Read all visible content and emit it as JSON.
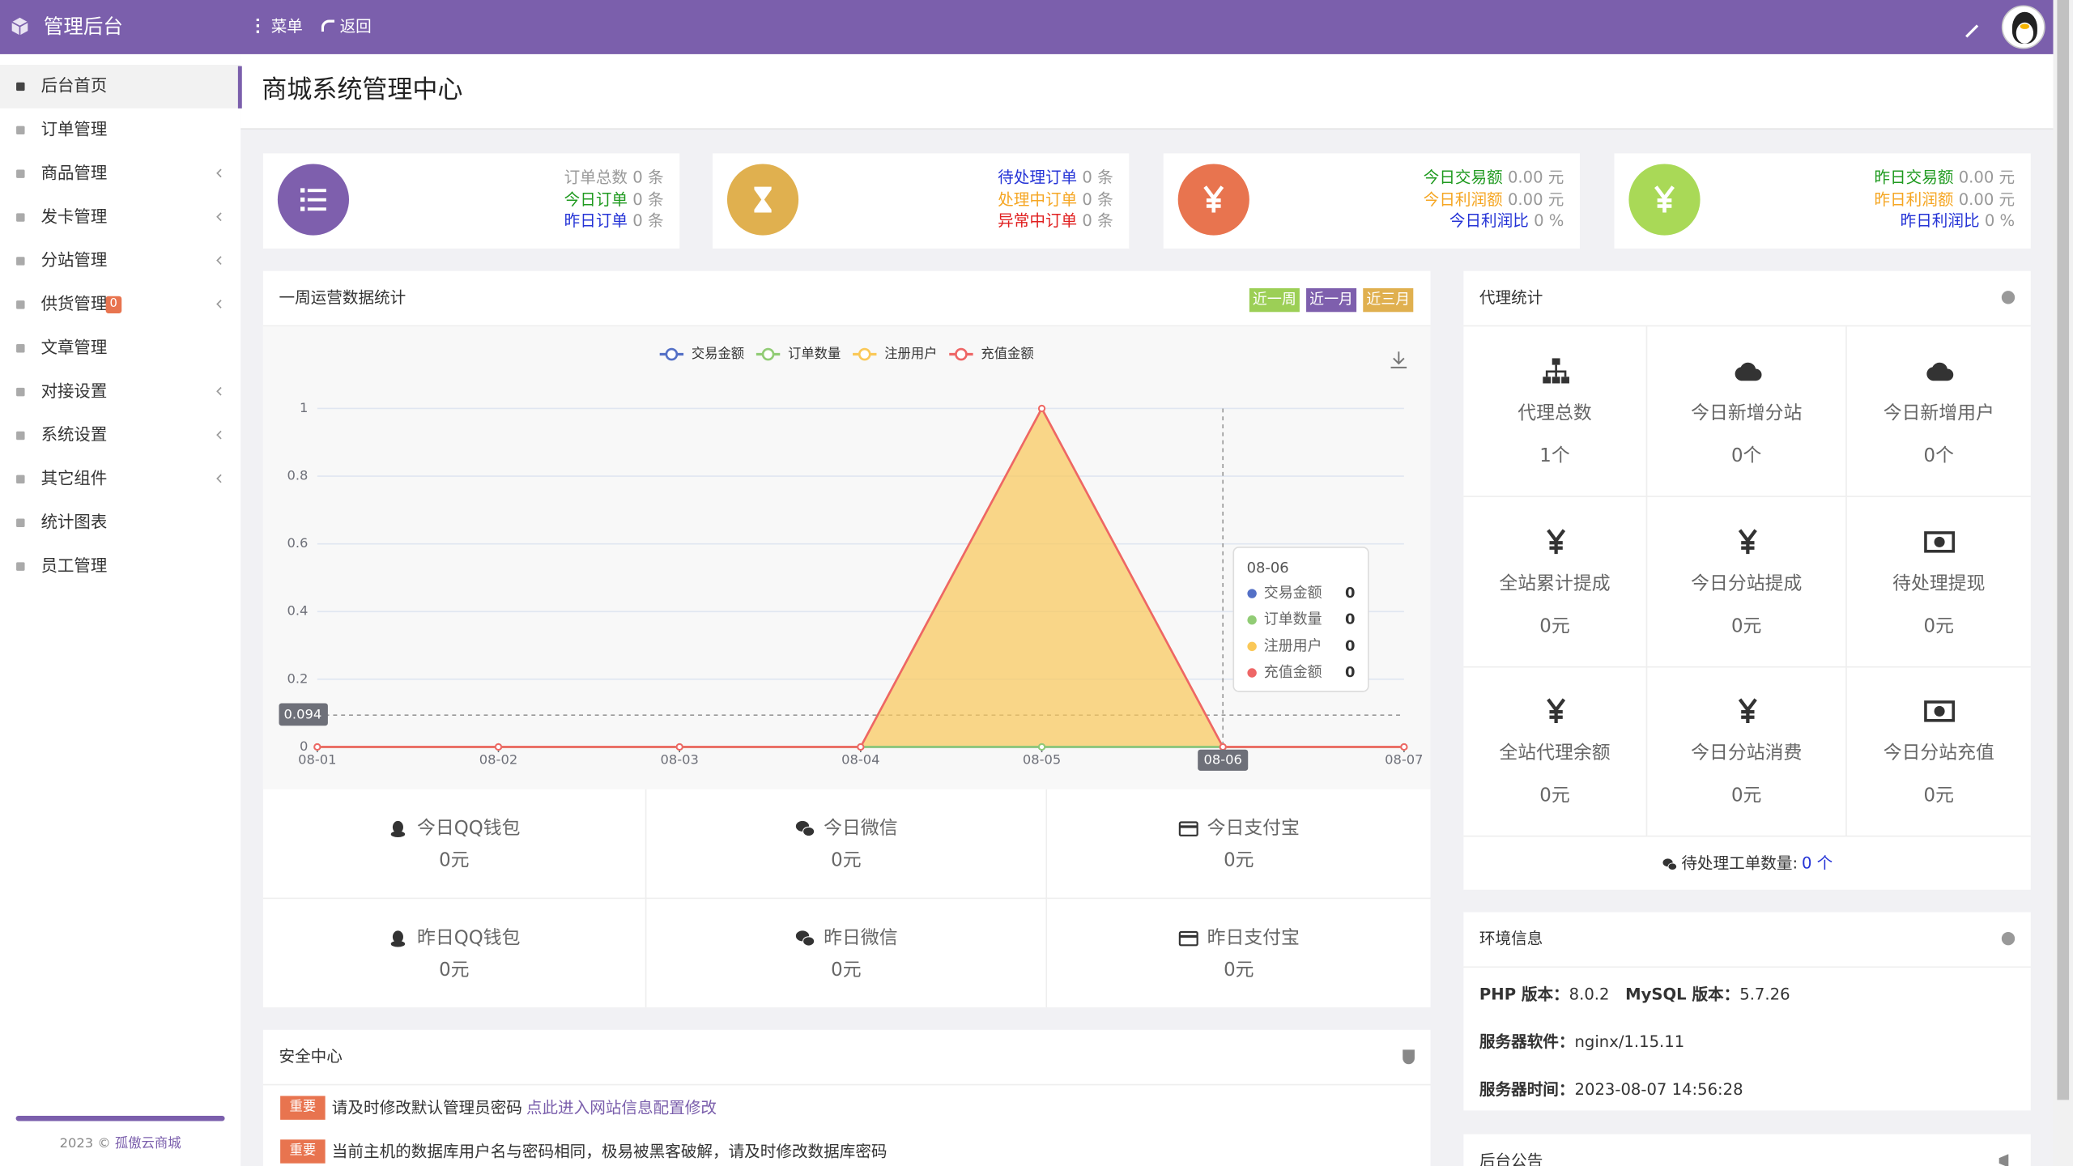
{
  "header": {
    "title": "管理后台",
    "menu": "菜单",
    "back": "返回"
  },
  "sidebar": {
    "items": [
      {
        "label": "后台首页",
        "active": true
      },
      {
        "label": "订单管理"
      },
      {
        "label": "商品管理",
        "arrow": true
      },
      {
        "label": "发卡管理",
        "arrow": true
      },
      {
        "label": "分站管理",
        "arrow": true
      },
      {
        "label": "供货管理",
        "badge": "0",
        "arrow": true
      },
      {
        "label": "文章管理"
      },
      {
        "label": "对接设置",
        "arrow": true
      },
      {
        "label": "系统设置",
        "arrow": true
      },
      {
        "label": "其它组件",
        "arrow": true
      },
      {
        "label": "统计图表"
      },
      {
        "label": "员工管理"
      }
    ],
    "footer_year": "2023 ©",
    "footer_link": "孤傲云商城"
  },
  "page_title": "商城系统管理中心",
  "stat_cards": [
    {
      "icon": "list",
      "icon_color": "#7e5fad",
      "rows": [
        {
          "label": "订单总数",
          "value": "0 条",
          "color": "#999999"
        },
        {
          "label": "今日订单",
          "value": "0 条",
          "color": "#1f9a1f"
        },
        {
          "label": "昨日订单",
          "value": "0 条",
          "color": "#2433d6"
        }
      ]
    },
    {
      "icon": "hourglass",
      "icon_color": "#e0b04f",
      "rows": [
        {
          "label": "待处理订单",
          "value": "0 条",
          "color": "#2433d6"
        },
        {
          "label": "处理中订单",
          "value": "0 条",
          "color": "#f5a623"
        },
        {
          "label": "异常中订单",
          "value": "0 条",
          "color": "#e02020"
        }
      ]
    },
    {
      "icon": "yen",
      "icon_color": "#e8744f",
      "rows": [
        {
          "label": "今日交易额",
          "value": "0.00 元",
          "color": "#1f9a1f"
        },
        {
          "label": "今日利润额",
          "value": "0.00 元",
          "color": "#f5a623"
        },
        {
          "label": "今日利润比",
          "value": "0 %",
          "color": "#2433d6"
        }
      ]
    },
    {
      "icon": "yen",
      "icon_color": "#a9d957",
      "rows": [
        {
          "label": "昨日交易额",
          "value": "0.00 元",
          "color": "#1f9a1f"
        },
        {
          "label": "昨日利润额",
          "value": "0.00 元",
          "color": "#f5a623"
        },
        {
          "label": "昨日利润比",
          "value": "0 %",
          "color": "#2433d6"
        }
      ]
    }
  ],
  "chart_data": {
    "type": "line",
    "title": "一周运营数据统计",
    "ranges": [
      {
        "label": "近一周",
        "color": "#9ccf56"
      },
      {
        "label": "近一月",
        "color": "#7e5fad"
      },
      {
        "label": "近三月",
        "color": "#e0b04f"
      }
    ],
    "categories": [
      "08-01",
      "08-02",
      "08-03",
      "08-04",
      "08-05",
      "08-06",
      "08-07"
    ],
    "series": [
      {
        "name": "交易金额",
        "color": "#5470c6",
        "values": [
          0,
          0,
          0,
          0,
          0,
          0,
          0
        ]
      },
      {
        "name": "订单数量",
        "color": "#91cc75",
        "values": [
          0,
          0,
          0,
          0,
          0,
          0,
          0
        ]
      },
      {
        "name": "注册用户",
        "color": "#fac858",
        "values": [
          0,
          0,
          0,
          0,
          1,
          0,
          0
        ],
        "area": true
      },
      {
        "name": "充值金额",
        "color": "#ee6666",
        "values": [
          0,
          0,
          0,
          0,
          1,
          0,
          0
        ]
      }
    ],
    "ylim": [
      0,
      1
    ],
    "yticks": [
      0,
      0.2,
      0.4,
      0.6,
      0.8,
      1
    ],
    "axis_pointer_y": 0.094,
    "tooltip": {
      "category": "08-06",
      "values": [
        0,
        0,
        0,
        0
      ]
    }
  },
  "payments": [
    {
      "label": "今日QQ钱包",
      "value": "0元",
      "icon": "qq"
    },
    {
      "label": "今日微信",
      "value": "0元",
      "icon": "wechat"
    },
    {
      "label": "今日支付宝",
      "value": "0元",
      "icon": "card"
    },
    {
      "label": "昨日QQ钱包",
      "value": "0元",
      "icon": "qq"
    },
    {
      "label": "昨日微信",
      "value": "0元",
      "icon": "wechat"
    },
    {
      "label": "昨日支付宝",
      "value": "0元",
      "icon": "card"
    }
  ],
  "agent": {
    "title": "代理统计",
    "items": [
      {
        "label": "代理总数",
        "value": "1个",
        "icon": "sitemap"
      },
      {
        "label": "今日新增分站",
        "value": "0个",
        "icon": "cloud"
      },
      {
        "label": "今日新增用户",
        "value": "0个",
        "icon": "cloud"
      },
      {
        "label": "全站累计提成",
        "value": "0元",
        "icon": "yen"
      },
      {
        "label": "今日分站提成",
        "value": "0元",
        "icon": "yen"
      },
      {
        "label": "待处理提现",
        "value": "0元",
        "icon": "money"
      },
      {
        "label": "全站代理余额",
        "value": "0元",
        "icon": "yen"
      },
      {
        "label": "今日分站消费",
        "value": "0元",
        "icon": "yen"
      },
      {
        "label": "今日分站充值",
        "value": "0元",
        "icon": "money"
      }
    ],
    "ticket_label": "待处理工单数量:",
    "ticket_value": "0 个"
  },
  "env": {
    "title": "环境信息",
    "rows": [
      [
        {
          "key": "PHP 版本：",
          "value": "8.0.2"
        },
        {
          "key": "MySQL 版本：",
          "value": "5.7.26"
        }
      ],
      [
        {
          "key": "服务器软件：",
          "value": "nginx/1.15.11"
        }
      ],
      [
        {
          "key": "服务器时间：",
          "value": "2023-08-07 14:56:28"
        }
      ]
    ]
  },
  "security": {
    "title": "安全中心",
    "items": [
      {
        "tag": "重要",
        "text": "请及时修改默认管理员密码",
        "link": "点此进入网站信息配置修改"
      },
      {
        "tag": "重要",
        "text": "当前主机的数据库用户名与密码相同，极易被黑客破解，请及时修改数据库密码"
      }
    ]
  },
  "notice": {
    "title": "后台公告"
  }
}
